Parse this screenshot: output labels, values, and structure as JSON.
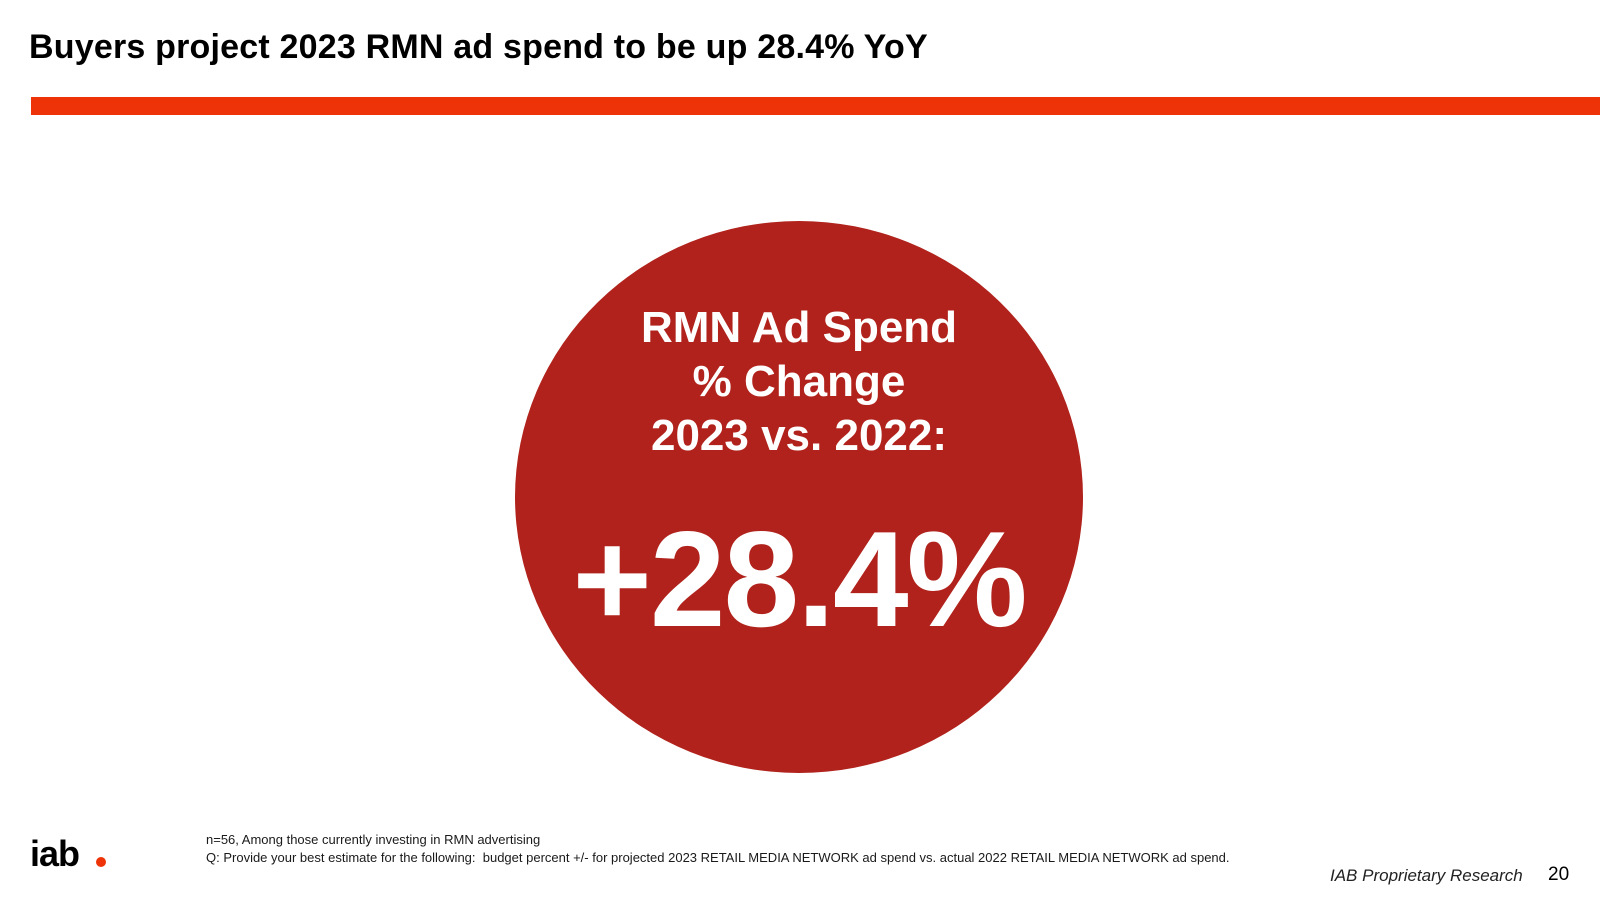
{
  "slide": {
    "title": "Buyers project 2023 RMN ad spend to be up 28.4% YoY",
    "accent_color": "#EE3308",
    "circle_color": "#B0221B"
  },
  "stat": {
    "label_line1": "RMN Ad Spend",
    "label_line2": "% Change",
    "label_line3": "2023 vs. 2022:",
    "value": "+28.4%"
  },
  "footer": {
    "logo_text": "iab",
    "logo_dot_color": "#EE3308",
    "note_line1": "n=56, Among those currently investing in RMN advertising",
    "note_line2": "Q: Provide your best estimate for the following:  budget percent +/- for projected 2023 RETAIL MEDIA NETWORK ad spend vs. actual 2022 RETAIL MEDIA NETWORK ad spend.",
    "proprietary": "IAB Proprietary Research",
    "page_number": "20"
  }
}
